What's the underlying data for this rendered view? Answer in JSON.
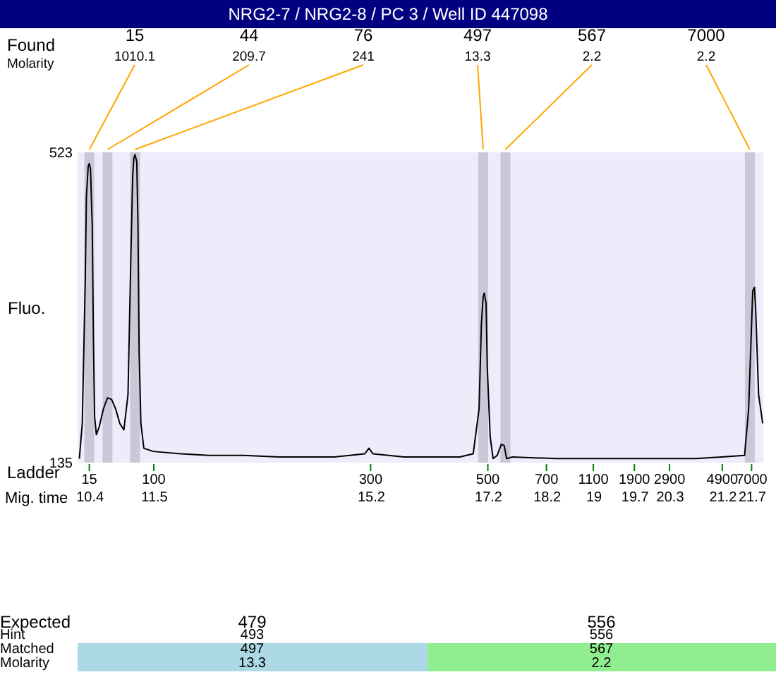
{
  "chart_data": [
    {
      "type": "line",
      "title": "NRG2-7 / NRG2-8 / PC 3 / Well ID 447098",
      "ylabel": "Fluo.",
      "xlabel": "Mig. time",
      "xlim": [
        10.2,
        21.9
      ],
      "ylim": [
        135,
        523
      ],
      "yticks": [
        135,
        523
      ],
      "xticks": [
        10.4,
        11.5,
        15.2,
        17.2,
        18.2,
        19,
        19.7,
        20.3,
        21.2,
        21.7
      ],
      "series": [
        {
          "color": "#000000",
          "x": [
            10.23,
            10.28,
            10.33,
            10.35,
            10.38,
            10.4,
            10.42,
            10.45,
            10.47,
            10.49,
            10.52,
            10.57,
            10.64,
            10.71,
            10.78,
            10.85,
            10.92,
            10.99,
            11.06,
            11.11,
            11.14,
            11.16,
            11.18,
            11.21,
            11.23,
            11.25,
            11.28,
            11.33,
            11.49,
            11.97,
            12.44,
            13.04,
            13.63,
            14.58,
            15.1,
            15.17,
            15.24,
            15.77,
            16.72,
            16.95,
            17.05,
            17.09,
            17.12,
            17.14,
            17.17,
            17.19,
            17.24,
            17.29,
            17.36,
            17.43,
            17.48,
            17.52,
            17.62,
            18.38,
            19.56,
            20.75,
            21.58,
            21.65,
            21.7,
            21.72,
            21.75,
            21.77,
            21.82,
            21.89
          ],
          "values": [
            140,
            184,
            361,
            467,
            505,
            509,
            502,
            431,
            290,
            193,
            170,
            180,
            202,
            216,
            214,
            202,
            184,
            176,
            220,
            396,
            493,
            516,
            520,
            511,
            431,
            273,
            184,
            153,
            149,
            146,
            144,
            144,
            142,
            142,
            146,
            153,
            146,
            142,
            142,
            146,
            202,
            308,
            343,
            347,
            334,
            255,
            167,
            140,
            144,
            158,
            156,
            140,
            142,
            140,
            140,
            140,
            144,
            202,
            308,
            350,
            354,
            326,
            220,
            184
          ]
        }
      ],
      "ref_lines": [
        {
          "axis": "x",
          "value": 10.4,
          "color": "#c8c8d8"
        },
        {
          "axis": "x",
          "value": 10.71,
          "color": "#c8c8d8"
        },
        {
          "axis": "x",
          "value": 11.18,
          "color": "#c8c8d8"
        },
        {
          "axis": "x",
          "value": 17.12,
          "color": "#c8c8d8"
        },
        {
          "axis": "x",
          "value": 17.5,
          "color": "#c8c8d8"
        },
        {
          "axis": "x",
          "value": 21.67,
          "color": "#c8c8d8"
        }
      ],
      "annotations": [
        "Found",
        "Molarity",
        "Ladder",
        "15",
        "44",
        "76",
        "497",
        "567",
        "7000",
        "1010.1",
        "209.7",
        "241",
        "13.3",
        "2.2",
        "2.2",
        "15",
        "100",
        "300",
        "500",
        "700",
        "1100",
        "1900",
        "2900",
        "4900",
        "7000"
      ]
    },
    {
      "type": "other",
      "data_labels": true,
      "categories": [
        "Expected",
        "Hint",
        "Matched",
        "Molarity"
      ],
      "series": [
        {
          "color": "#add8e6",
          "values": [
            479,
            493,
            497,
            13.3
          ]
        },
        {
          "color": "#90ee90",
          "values": [
            556,
            556,
            567,
            2.2
          ]
        }
      ]
    }
  ]
}
